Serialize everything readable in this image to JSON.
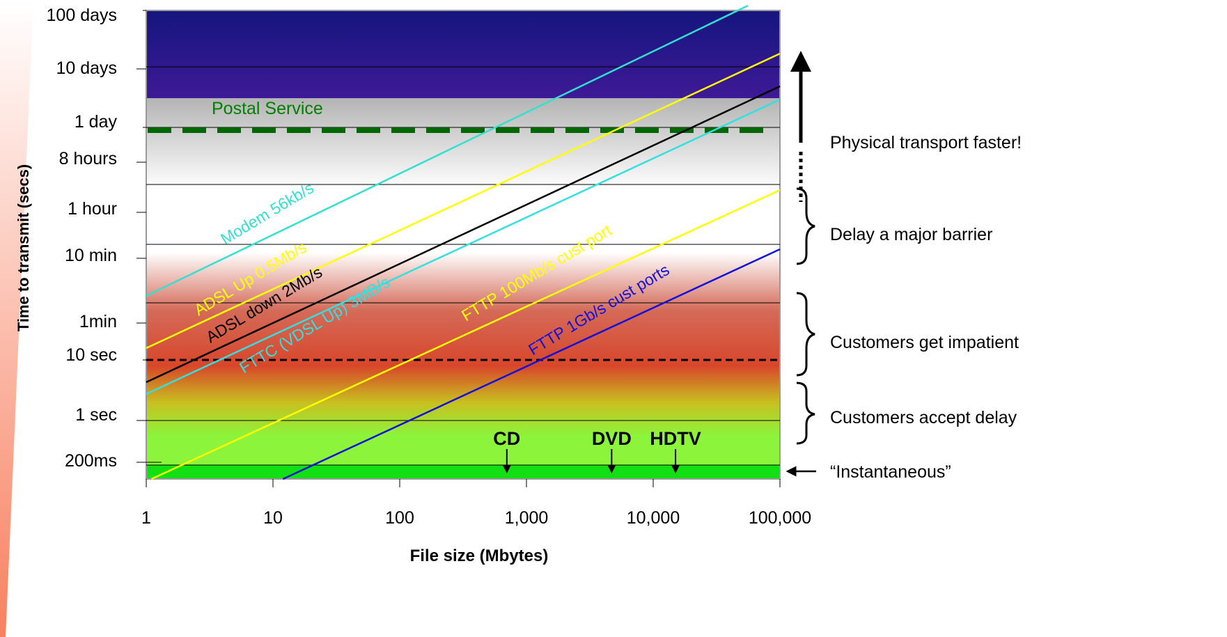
{
  "chart_data": {
    "type": "line",
    "xlabel": "File size (Mbytes)",
    "ylabel": "Time to transmit (secs)",
    "x_scale": "log",
    "xlim": [
      1,
      100000
    ],
    "x_ticks": [
      {
        "value": 1,
        "label": "1"
      },
      {
        "value": 10,
        "label": "10"
      },
      {
        "value": 100,
        "label": "100"
      },
      {
        "value": 1000,
        "label": "1,000"
      },
      {
        "value": 10000,
        "label": "10,000"
      },
      {
        "value": 100000,
        "label": "100,000"
      }
    ],
    "y_ticks": [
      {
        "label": "100 days"
      },
      {
        "label": "10 days"
      },
      {
        "label": "1 day"
      },
      {
        "label": "8 hours"
      },
      {
        "label": "1 hour"
      },
      {
        "label": "10 min"
      },
      {
        "label": "1min"
      },
      {
        "label": "10 sec"
      },
      {
        "label": "1 sec"
      },
      {
        "label": "200ms"
      }
    ],
    "series": [
      {
        "name": "Modem 56kb/s",
        "color": "#33e0d0",
        "x": [
          1,
          56000
        ],
        "y_label_range": [
          "10 min",
          "100 days"
        ]
      },
      {
        "name": "ADSL Up  0.5Mb/s",
        "color": "#ffff00",
        "x": [
          1,
          100000
        ],
        "y_label_range": [
          "10 sec",
          "10 days"
        ]
      },
      {
        "name": "ADSL down 2Mb/s",
        "color": "#000000",
        "x": [
          1,
          100000
        ],
        "y_label_range": [
          "10 sec",
          "1 day"
        ]
      },
      {
        "name": "FTTC (VDSL Up) 3MB/s",
        "color": "#33e0e0",
        "x": [
          1,
          100000
        ],
        "y_label_range": [
          "1 sec",
          "1 day"
        ]
      },
      {
        "name": "FTTP 100Mb/s cust port",
        "color": "#ffff00",
        "x": [
          1.1,
          100000
        ],
        "y_label_range": [
          "200ms",
          "8 hours"
        ]
      },
      {
        "name": "FTTP 1Gb/s cust ports",
        "color": "#1010dd",
        "x": [
          12,
          100000
        ],
        "y_label_range": [
          "200ms",
          "1 hour"
        ]
      }
    ],
    "threshold_lines": [
      {
        "label": "Postal Service",
        "color": "#006600",
        "y_label": "1 day"
      },
      {
        "color": "#000000",
        "y_label": "10 sec"
      }
    ],
    "markers": [
      {
        "label": "CD",
        "x": 700
      },
      {
        "label": "DVD",
        "x": 4700
      },
      {
        "label": "HDTV",
        "x": 15000
      }
    ],
    "zones": [
      {
        "label": "Physical transport faster!"
      },
      {
        "label": "Delay a major barrier"
      },
      {
        "label": "Customers get impatient"
      },
      {
        "label": "Customers accept delay"
      },
      {
        "label": "“Instantaneous”"
      }
    ]
  }
}
